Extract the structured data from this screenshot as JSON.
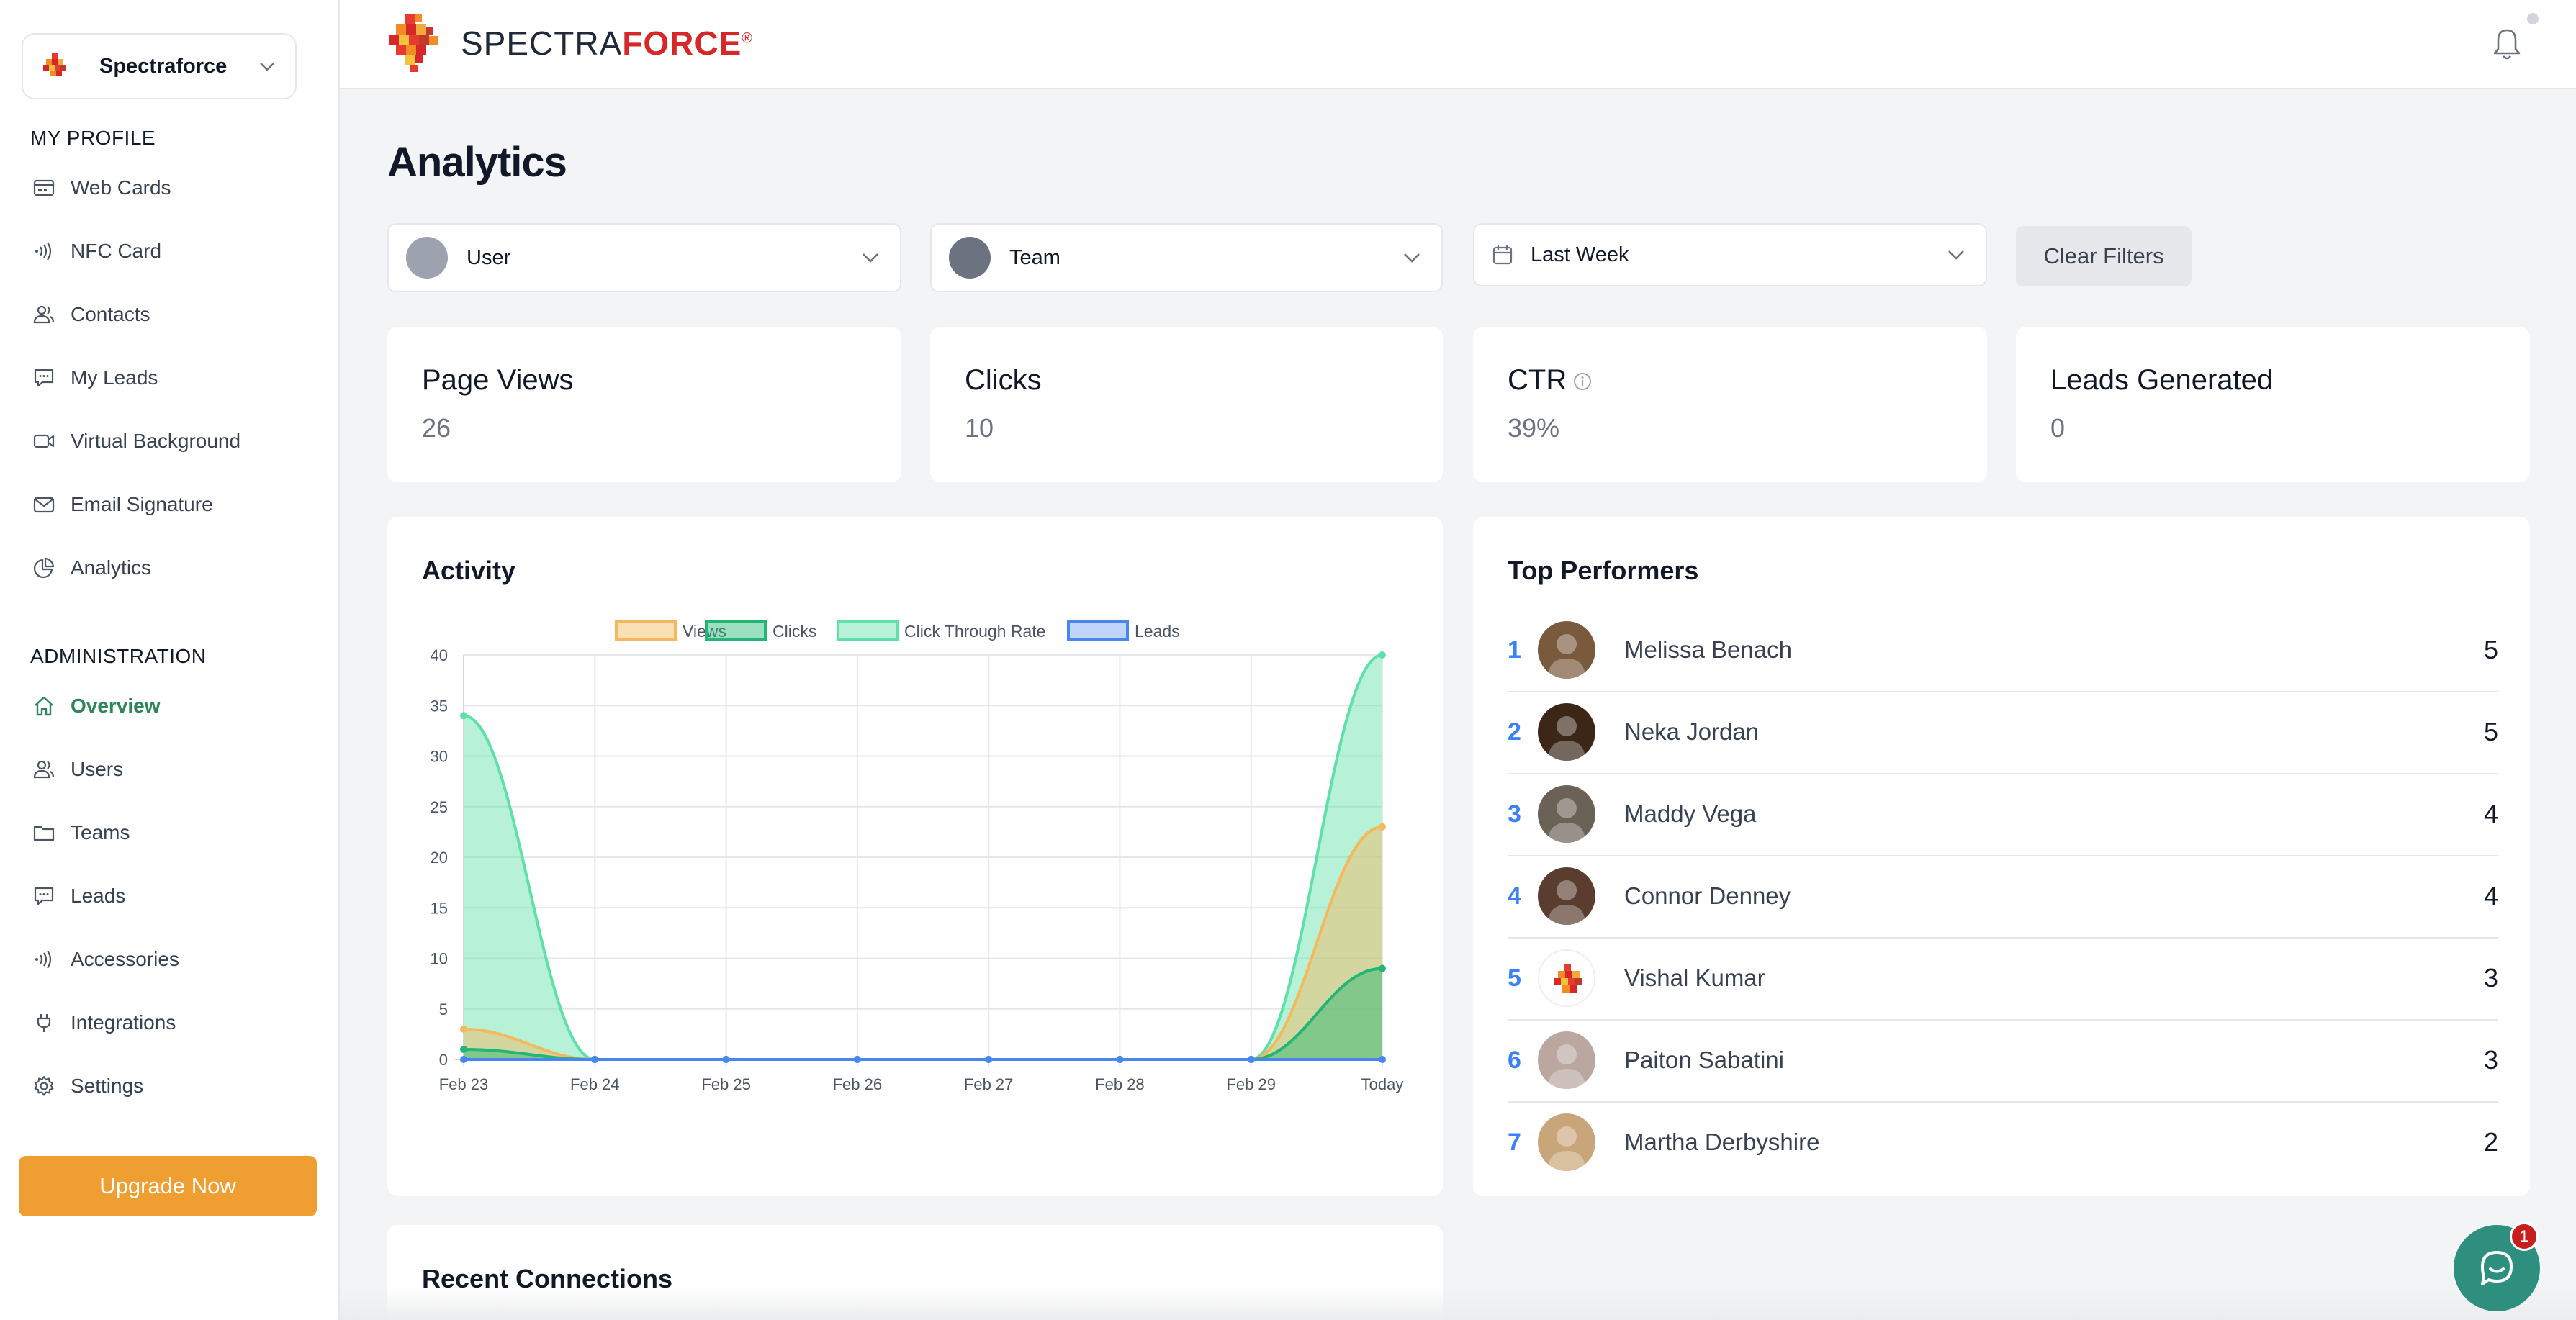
{
  "org": {
    "name": "Spectraforce"
  },
  "brand": {
    "part1": "SPECTRA",
    "part2": "FORCE",
    "mark": "®"
  },
  "sidebar": {
    "profile_label": "MY PROFILE",
    "profile_items": [
      {
        "label": "Web Cards",
        "icon": "card-icon"
      },
      {
        "label": "NFC Card",
        "icon": "nfc-icon"
      },
      {
        "label": "Contacts",
        "icon": "contacts-icon"
      },
      {
        "label": "My Leads",
        "icon": "chat-icon"
      },
      {
        "label": "Virtual Background",
        "icon": "video-icon"
      },
      {
        "label": "Email Signature",
        "icon": "mail-icon"
      },
      {
        "label": "Analytics",
        "icon": "pie-icon"
      }
    ],
    "admin_label": "ADMINISTRATION",
    "admin_items": [
      {
        "label": "Overview",
        "icon": "home-icon",
        "active": true
      },
      {
        "label": "Users",
        "icon": "users-icon"
      },
      {
        "label": "Teams",
        "icon": "folder-icon"
      },
      {
        "label": "Leads",
        "icon": "chat-icon"
      },
      {
        "label": "Accessories",
        "icon": "nfc-icon"
      },
      {
        "label": "Integrations",
        "icon": "plug-icon"
      },
      {
        "label": "Settings",
        "icon": "gear-icon"
      }
    ],
    "upgrade_label": "Upgrade Now"
  },
  "page": {
    "title": "Analytics"
  },
  "filters": {
    "user": "User",
    "team": "Team",
    "date": "Last Week",
    "clear": "Clear Filters"
  },
  "stats": [
    {
      "title": "Page Views",
      "value": "26"
    },
    {
      "title": "Clicks",
      "value": "10"
    },
    {
      "title": "CTR",
      "value": "39%"
    },
    {
      "title": "Leads Generated",
      "value": "0"
    }
  ],
  "activity": {
    "title": "Activity"
  },
  "chart_data": {
    "type": "area",
    "title": "",
    "x": [
      "Feb 23",
      "Feb 24",
      "Feb 25",
      "Feb 26",
      "Feb 27",
      "Feb 28",
      "Feb 29",
      "Today"
    ],
    "ylim": [
      0,
      40
    ],
    "yticks": [
      0,
      5,
      10,
      15,
      20,
      25,
      30,
      35,
      40
    ],
    "grid": true,
    "legend": "top-center",
    "series": [
      {
        "name": "Views",
        "values": [
          3,
          0,
          0,
          0,
          0,
          0,
          0,
          23
        ],
        "color": "#f6b85a",
        "fill": "rgba(246,184,90,0.45)"
      },
      {
        "name": "Clicks",
        "values": [
          1,
          0,
          0,
          0,
          0,
          0,
          0,
          9
        ],
        "color": "#22b573",
        "fill": "rgba(34,181,115,0.45)"
      },
      {
        "name": "Click Through Rate",
        "values": [
          34,
          0,
          0,
          0,
          0,
          0,
          0,
          40
        ],
        "color": "#5fe0a8",
        "fill": "rgba(95,224,168,0.45)"
      },
      {
        "name": "Leads",
        "values": [
          0,
          0,
          0,
          0,
          0,
          0,
          0,
          0
        ],
        "color": "#4a86f0",
        "fill": "rgba(74,134,240,0.35)"
      }
    ]
  },
  "performers": {
    "title": "Top Performers",
    "rows": [
      {
        "rank": "1",
        "name": "Melissa Benach",
        "value": "5",
        "avatar_color": "#7a5a3c"
      },
      {
        "rank": "2",
        "name": "Neka Jordan",
        "value": "5",
        "avatar_color": "#3b2618"
      },
      {
        "rank": "3",
        "name": "Maddy Vega",
        "value": "4",
        "avatar_color": "#6b6257"
      },
      {
        "rank": "4",
        "name": "Connor Denney",
        "value": "4",
        "avatar_color": "#5a3d2e"
      },
      {
        "rank": "5",
        "name": "Vishal Kumar",
        "value": "3",
        "avatar_color": "#ffffff"
      },
      {
        "rank": "6",
        "name": "Paiton Sabatini",
        "value": "3",
        "avatar_color": "#b9a7a0"
      },
      {
        "rank": "7",
        "name": "Martha Derbyshire",
        "value": "2",
        "avatar_color": "#c9a67a"
      }
    ]
  },
  "recent": {
    "title": "Recent Connections"
  },
  "chat": {
    "badge": "1"
  }
}
